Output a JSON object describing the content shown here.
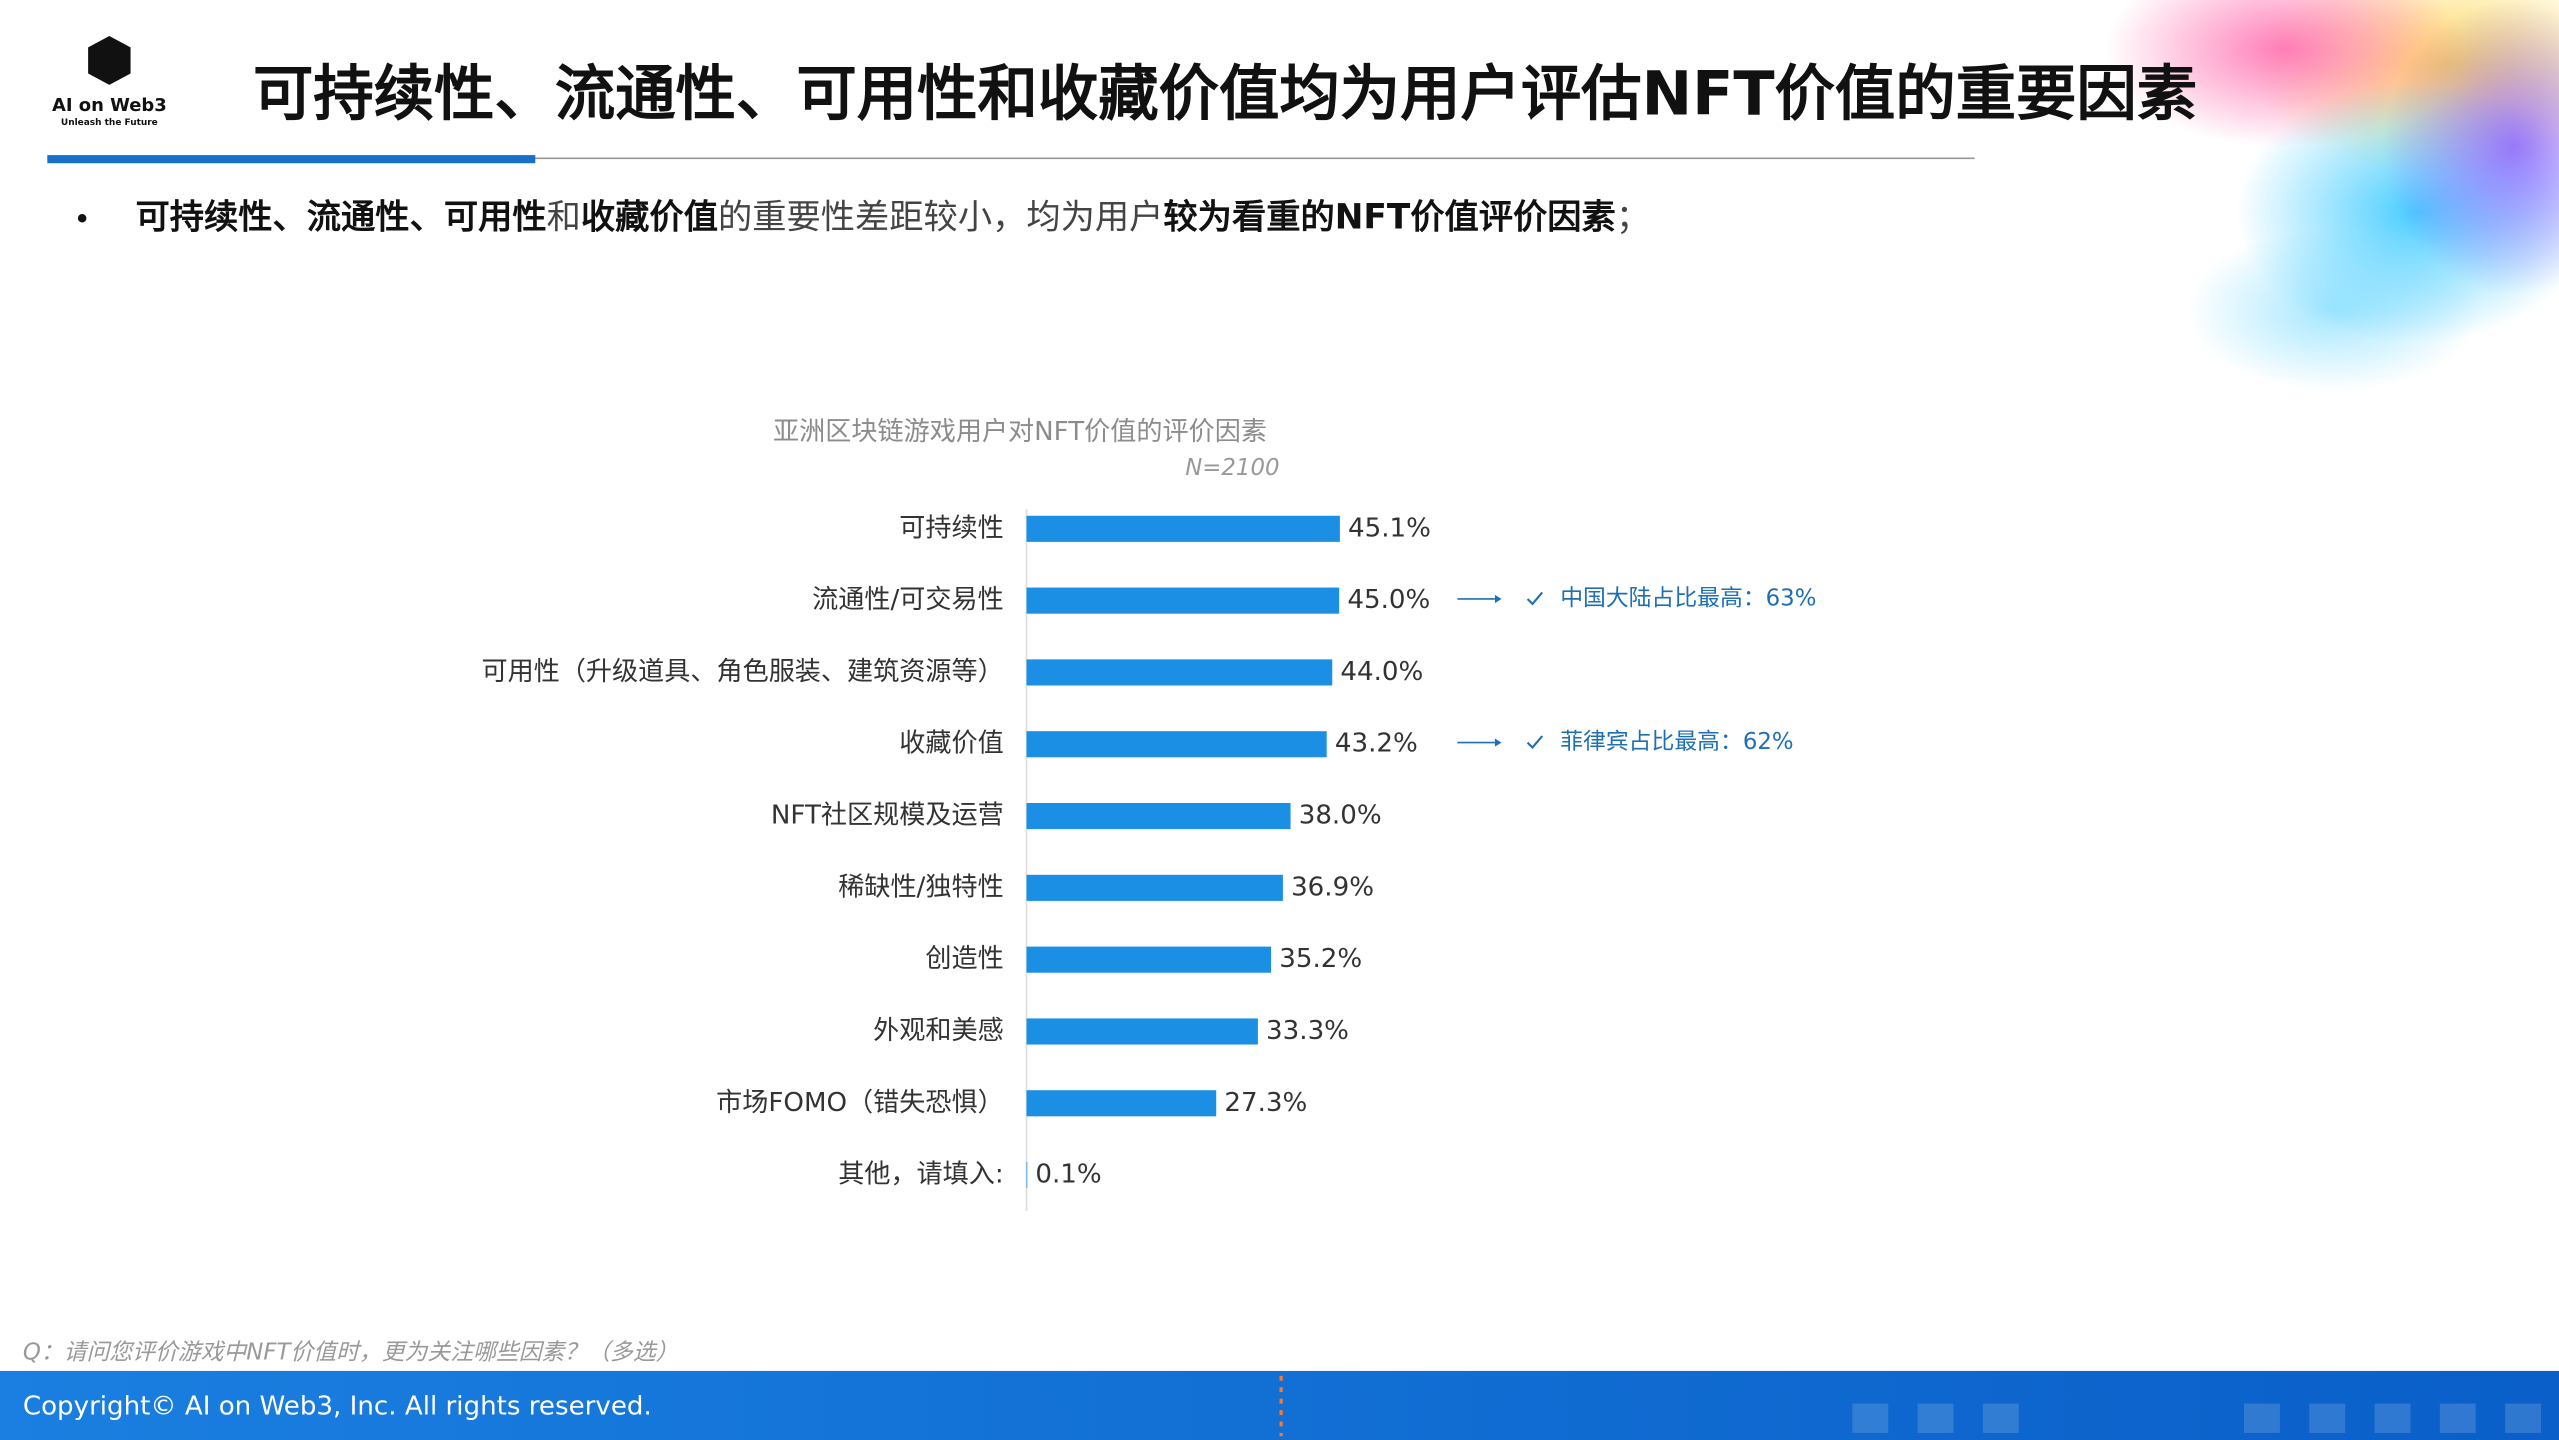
{
  "header": {
    "logo_title": "AI on Web3",
    "logo_subtitle": "Unleash the Future",
    "title": "可持续性、流通性、可用性和收藏价值均为用户评估NFT价值的重要因素"
  },
  "bullet": {
    "segments": [
      {
        "text": "可持续性、流通性、可用性",
        "bold": true
      },
      {
        "text": "和",
        "bold": false
      },
      {
        "text": "收藏价值",
        "bold": true
      },
      {
        "text": "的重要性差距较小，均为用户",
        "bold": false
      },
      {
        "text": "较为看重的NFT价值评价因素",
        "bold": true
      },
      {
        "text": "；",
        "bold": false
      }
    ]
  },
  "chart_data": {
    "type": "bar",
    "orientation": "horizontal",
    "title": "亚洲区块链游戏用户对NFT价值的评价因素",
    "subtitle": "N=2100",
    "categories": [
      "可持续性",
      "流通性/可交易性",
      "可用性（升级道具、角色服装、建筑资源等）",
      "收藏价值",
      "NFT社区规模及运营",
      "稀缺性/独特性",
      "创造性",
      "外观和美感",
      "市场FOMO（错失恐惧）",
      "其他，请填入:"
    ],
    "values": [
      45.1,
      45.0,
      44.0,
      43.2,
      38.0,
      36.9,
      35.2,
      33.3,
      27.3,
      0.1
    ],
    "value_labels": [
      "45.1%",
      "45.0%",
      "44.0%",
      "43.2%",
      "38.0%",
      "36.9%",
      "35.2%",
      "33.3%",
      "27.3%",
      "0.1%"
    ],
    "color": "#1a8fe3",
    "annotations": [
      {
        "category": "流通性/可交易性",
        "text": "中国大陆占比最高：63%"
      },
      {
        "category": "收藏价值",
        "text": "菲律宾占比最高：62%"
      }
    ],
    "annotation_color": "#1f6fb5"
  },
  "footer": {
    "note": "Q：请问您评价游戏中NFT价值时，更为关注哪些因素？（多选）",
    "copyright": "Copyright© AI on Web3, Inc. All rights reserved."
  }
}
